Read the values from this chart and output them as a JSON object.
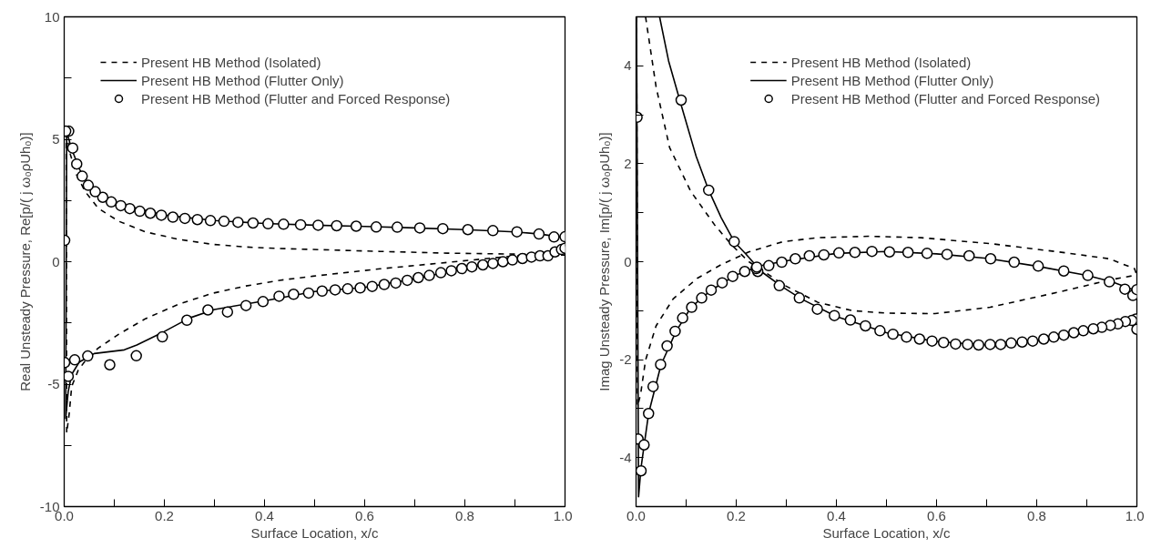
{
  "chart_data": [
    {
      "type": "line",
      "xlabel": "Surface Location, x/c",
      "ylabel": "Real Unsteady Pressure, Re[p/( j ω₀ρUh₀)]",
      "xlim": [
        0,
        1
      ],
      "ylim": [
        -10,
        10
      ],
      "xticks": [
        {
          "value": 0,
          "label": "0.0"
        },
        {
          "value": 0.1,
          "label": null
        },
        0.2,
        {
          "value": 0.3,
          "label": null
        },
        0.4,
        {
          "value": 0.5,
          "label": null
        },
        0.6,
        {
          "value": 0.7,
          "label": null
        },
        0.8,
        {
          "value": 0.9,
          "label": null
        },
        {
          "value": 1,
          "label": "1.0"
        }
      ],
      "yticks": [
        -10,
        {
          "value": -7.5,
          "label": null
        },
        -5,
        {
          "value": -2.5,
          "label": null
        },
        0,
        {
          "value": 2.5,
          "label": null
        },
        5,
        {
          "value": 7.5,
          "label": null
        },
        10
      ],
      "grid": false,
      "legend": "top left",
      "series": [
        {
          "name": "Present HB Method (Isolated)",
          "line_style": "dashed",
          "color": "#000000",
          "x": [
            0.004,
            0.012,
            0.025,
            0.042,
            0.068,
            0.109,
            0.162,
            0.229,
            0.296,
            0.363,
            0.43,
            0.497,
            0.631,
            0.765,
            0.9,
            1.0
          ],
          "values": [
            5.3,
            4.4,
            3.53,
            2.86,
            2.18,
            1.65,
            1.22,
            0.91,
            0.71,
            0.6,
            0.54,
            0.5,
            0.42,
            0.35,
            0.31,
            0.27
          ]
        },
        {
          "line_style": "dashed",
          "color": "#000000",
          "x": [
            0.004,
            0.005,
            0.01,
            0.015,
            0.028,
            0.048,
            0.068,
            0.109,
            0.162,
            0.229,
            0.296,
            0.363,
            0.43,
            0.497,
            0.631,
            0.765,
            0.9,
            1.0
          ],
          "values": [
            5.3,
            -7.0,
            -6.2,
            -5.09,
            -4.43,
            -3.89,
            -3.53,
            -2.96,
            -2.33,
            -1.73,
            -1.29,
            -0.99,
            -0.76,
            -0.59,
            -0.29,
            -0.03,
            0.24,
            0.27
          ]
        },
        {
          "name": "Present HB Method (Flutter Only)",
          "line_style": "solid",
          "color": "#000000",
          "x": [
            0.005,
            0.015,
            0.03,
            0.05,
            0.1,
            0.2,
            0.3,
            0.4,
            0.5,
            0.6,
            0.7,
            0.8,
            0.9,
            0.95,
            1.0
          ],
          "values": [
            5.3,
            4.6,
            3.8,
            3.1,
            2.4,
            1.9,
            1.68,
            1.56,
            1.49,
            1.44,
            1.38,
            1.31,
            1.22,
            1.13,
            0.98
          ]
        },
        {
          "line_style": "solid",
          "color": "#000000",
          "x": [
            0.005,
            0.003,
            0.008,
            0.015,
            0.03,
            0.06,
            0.12,
            0.145,
            0.2,
            0.25,
            0.3,
            0.4,
            0.5,
            0.6,
            0.7,
            0.8,
            0.9,
            1.0
          ],
          "values": [
            5.3,
            -6.4,
            -5.3,
            -4.6,
            -4.1,
            -3.75,
            -3.6,
            -3.4,
            -2.85,
            -2.3,
            -1.95,
            -1.6,
            -1.22,
            -1.05,
            -0.7,
            -0.27,
            0.1,
            0.55
          ]
        },
        {
          "name": "Present HB Method (Flutter and Forced Response)",
          "type": "scatter",
          "marker": "circle",
          "color": "#000000",
          "x": [
            1.0,
            0.978,
            0.948,
            0.904,
            0.856,
            0.806,
            0.756,
            0.71,
            0.665,
            0.623,
            0.583,
            0.544,
            0.507,
            0.472,
            0.438,
            0.407,
            0.377,
            0.347,
            0.319,
            0.292,
            0.266,
            0.241,
            0.217,
            0.194,
            0.172,
            0.151,
            0.131,
            0.113,
            0.094,
            0.077,
            0.062,
            0.048,
            0.036,
            0.025,
            0.017,
            0.009,
            0.003,
            0.001,
            0.001,
            0.008,
            0.021,
            0.047,
            0.091,
            0.144,
            0.196,
            0.245,
            0.287,
            0.326,
            0.363,
            0.397,
            0.429,
            0.458,
            0.488,
            0.515,
            0.541,
            0.566,
            0.591,
            0.615,
            0.639,
            0.662,
            0.685,
            0.707,
            0.729,
            0.752,
            0.773,
            0.794,
            0.814,
            0.836,
            0.856,
            0.876,
            0.895,
            0.915,
            0.933,
            0.95,
            0.966,
            0.98,
            0.993,
            1.0
          ],
          "values": [
            1.02,
            1.01,
            1.13,
            1.22,
            1.27,
            1.31,
            1.35,
            1.38,
            1.41,
            1.42,
            1.45,
            1.47,
            1.49,
            1.51,
            1.53,
            1.55,
            1.58,
            1.61,
            1.65,
            1.68,
            1.72,
            1.77,
            1.82,
            1.9,
            1.98,
            2.06,
            2.17,
            2.29,
            2.44,
            2.63,
            2.86,
            3.12,
            3.49,
            3.99,
            4.64,
            5.33,
            5.33,
            0.87,
            -4.12,
            -4.68,
            -4.01,
            -3.85,
            -4.21,
            -3.84,
            -3.07,
            -2.39,
            -1.97,
            -2.05,
            -1.79,
            -1.63,
            -1.41,
            -1.33,
            -1.28,
            -1.2,
            -1.15,
            -1.11,
            -1.07,
            -1.01,
            -0.93,
            -0.87,
            -0.76,
            -0.65,
            -0.56,
            -0.45,
            -0.37,
            -0.28,
            -0.21,
            -0.13,
            -0.07,
            0.0,
            0.07,
            0.13,
            0.19,
            0.24,
            0.24,
            0.4,
            0.5,
            0.55
          ]
        }
      ]
    },
    {
      "type": "line",
      "xlabel": "Surface Location, x/c",
      "ylabel": "Imag Unsteady Pressure, Im[p/( j ω₀ρUh₀)]",
      "xlim": [
        0,
        1
      ],
      "ylim": [
        -5,
        5
      ],
      "xticks": [
        {
          "value": 0,
          "label": "0.0"
        },
        {
          "value": 0.1,
          "label": null
        },
        0.2,
        {
          "value": 0.3,
          "label": null
        },
        0.4,
        {
          "value": 0.5,
          "label": null
        },
        0.6,
        {
          "value": 0.7,
          "label": null
        },
        0.8,
        {
          "value": 0.9,
          "label": null
        },
        {
          "value": 1,
          "label": "1.0"
        }
      ],
      "yticks": [
        -4,
        {
          "value": -3,
          "label": null
        },
        -2,
        {
          "value": -1,
          "label": null
        },
        0,
        {
          "value": 1,
          "label": null
        },
        2,
        {
          "value": 3,
          "label": null
        },
        4
      ],
      "grid": false,
      "legend": "top right",
      "series": [
        {
          "name": "Present HB Method (Isolated)",
          "line_style": "dashed",
          "color": "#000000",
          "x": [
            0.019,
            0.04,
            0.067,
            0.109,
            0.157,
            0.191,
            0.225,
            0.26,
            0.294,
            0.363,
            0.432,
            0.5,
            0.597,
            0.707,
            0.844,
            0.947,
            1.0
          ],
          "values": [
            5.0,
            3.57,
            2.33,
            1.44,
            0.75,
            0.34,
            0.0,
            -0.23,
            -0.47,
            -0.83,
            -1.0,
            -1.05,
            -1.06,
            -0.93,
            -0.62,
            -0.37,
            -0.27
          ]
        },
        {
          "line_style": "dashed",
          "color": "#000000",
          "x": [
            0.001,
            0.003,
            0.009,
            0.019,
            0.04,
            0.074,
            0.122,
            0.17,
            0.225,
            0.294,
            0.363,
            0.466,
            0.569,
            0.707,
            0.844,
            0.945,
            0.995,
            1.0
          ],
          "values": [
            5.0,
            -2.95,
            -2.71,
            -2.01,
            -1.31,
            -0.76,
            -0.34,
            -0.06,
            0.2,
            0.41,
            0.49,
            0.52,
            0.49,
            0.37,
            0.2,
            0.06,
            -0.14,
            -0.27
          ]
        },
        {
          "name": "Present HB Method (Flutter Only)",
          "line_style": "solid",
          "color": "#000000",
          "x": [
            0.047,
            0.065,
            0.09,
            0.12,
            0.145,
            0.17,
            0.196,
            0.22,
            0.25,
            0.29,
            0.33,
            0.4,
            0.5,
            0.6,
            0.7,
            0.8,
            0.9,
            0.95,
            1.0
          ],
          "values": [
            5.0,
            4.1,
            3.2,
            2.15,
            1.46,
            0.9,
            0.41,
            0.15,
            -0.2,
            -0.5,
            -0.76,
            -1.12,
            -1.45,
            -1.63,
            -1.7,
            -1.62,
            -1.42,
            -1.3,
            -1.2
          ]
        },
        {
          "line_style": "solid",
          "color": "#000000",
          "x": [
            0.001,
            0.005,
            0.01,
            0.025,
            0.05,
            0.08,
            0.11,
            0.15,
            0.2,
            0.25,
            0.3,
            0.4,
            0.5,
            0.6,
            0.7,
            0.8,
            0.9,
            0.95,
            1.0
          ],
          "values": [
            5.0,
            -4.8,
            -4.2,
            -3.1,
            -2.1,
            -1.42,
            -0.93,
            -0.58,
            -0.27,
            -0.08,
            0.02,
            0.17,
            0.21,
            0.16,
            0.07,
            -0.09,
            -0.28,
            -0.41,
            -0.6
          ]
        },
        {
          "name": "Present HB Method (Flutter and Forced Response)",
          "type": "scatter",
          "marker": "circle",
          "color": "#000000",
          "x": [
            1.0,
            0.998,
            0.99,
            0.977,
            0.962,
            0.947,
            0.93,
            0.913,
            0.893,
            0.874,
            0.854,
            0.834,
            0.814,
            0.792,
            0.771,
            0.749,
            0.728,
            0.707,
            0.684,
            0.662,
            0.638,
            0.614,
            0.591,
            0.566,
            0.54,
            0.513,
            0.487,
            0.458,
            0.428,
            0.396,
            0.362,
            0.326,
            0.286,
            0.243,
            0.24,
            0.196,
            0.145,
            0.09,
            0.002,
            0.004,
            0.01,
            0.016,
            0.025,
            0.034,
            0.049,
            0.062,
            0.078,
            0.093,
            0.111,
            0.131,
            0.15,
            0.172,
            0.193,
            0.217,
            0.241,
            0.265,
            0.291,
            0.318,
            0.346,
            0.375,
            0.405,
            0.437,
            0.471,
            0.506,
            0.543,
            0.581,
            0.621,
            0.665,
            0.708,
            0.755,
            0.803,
            0.854,
            0.902,
            0.945,
            0.976,
            0.992,
            1.0
          ],
          "values": [
            -1.38,
            -1.17,
            -1.2,
            -1.22,
            -1.27,
            -1.3,
            -1.34,
            -1.37,
            -1.41,
            -1.45,
            -1.5,
            -1.54,
            -1.58,
            -1.62,
            -1.64,
            -1.66,
            -1.69,
            -1.69,
            -1.7,
            -1.69,
            -1.68,
            -1.65,
            -1.62,
            -1.58,
            -1.54,
            -1.48,
            -1.41,
            -1.31,
            -1.19,
            -1.1,
            -0.97,
            -0.74,
            -0.49,
            -0.2,
            -0.14,
            0.41,
            1.46,
            3.3,
            2.95,
            -3.62,
            -4.27,
            -3.74,
            -3.1,
            -2.55,
            -2.1,
            -1.72,
            -1.42,
            -1.15,
            -0.93,
            -0.74,
            -0.58,
            -0.43,
            -0.3,
            -0.2,
            -0.11,
            -0.08,
            -0.01,
            0.06,
            0.12,
            0.14,
            0.18,
            0.19,
            0.21,
            0.2,
            0.19,
            0.17,
            0.15,
            0.12,
            0.06,
            -0.01,
            -0.09,
            -0.19,
            -0.28,
            -0.41,
            -0.56,
            -0.69,
            -0.57
          ]
        }
      ]
    }
  ]
}
